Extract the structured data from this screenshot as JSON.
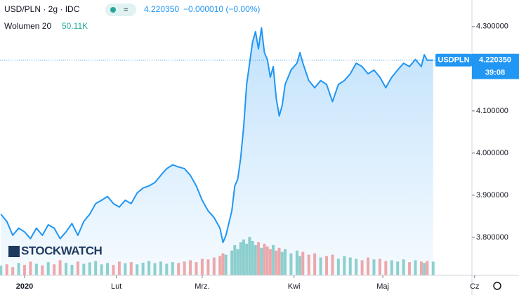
{
  "chart_data": {
    "type": "area",
    "title": "USD/PLN · 2g · IDC",
    "price": "4.220350",
    "change": "−0.000010 (−0.00%)",
    "volume_label": "Wolumen 20",
    "volume_value": "50.11K",
    "symbol_tag": "USDPLN",
    "countdown": "39:08",
    "logo": "STOCKWATCH",
    "x": [
      -8,
      -6,
      -4,
      -2,
      0,
      2,
      4,
      6,
      8,
      10,
      12,
      14,
      16,
      18,
      20,
      22,
      24,
      26,
      28,
      30,
      32,
      34,
      36,
      38,
      40,
      42,
      44,
      46,
      48,
      50,
      52,
      54,
      56,
      58,
      60,
      62,
      64,
      66,
      67,
      68,
      70,
      71,
      72,
      73,
      74,
      75,
      76,
      77,
      78,
      79,
      80,
      81,
      82,
      83,
      84,
      85,
      86,
      87,
      88,
      90,
      92,
      93,
      94,
      96,
      98,
      100,
      102,
      104,
      106,
      108,
      110,
      112,
      114,
      116,
      118,
      120,
      122,
      124,
      126,
      128,
      130,
      132,
      134,
      135,
      136,
      138
    ],
    "series": [
      {
        "name": "USD/PLN",
        "color": "#2196f3",
        "values": [
          3.855,
          3.838,
          3.805,
          3.822,
          3.813,
          3.797,
          3.822,
          3.805,
          3.83,
          3.822,
          3.797,
          3.813,
          3.833,
          3.805,
          3.838,
          3.855,
          3.88,
          3.888,
          3.897,
          3.88,
          3.872,
          3.888,
          3.88,
          3.905,
          3.917,
          3.922,
          3.93,
          3.947,
          3.963,
          3.972,
          3.967,
          3.963,
          3.947,
          3.922,
          3.888,
          3.863,
          3.847,
          3.822,
          3.788,
          3.805,
          3.863,
          3.922,
          3.938,
          3.988,
          4.063,
          4.163,
          4.213,
          4.263,
          4.288,
          4.247,
          4.297,
          4.238,
          4.222,
          4.18,
          4.205,
          4.13,
          4.088,
          4.113,
          4.163,
          4.197,
          4.213,
          4.238,
          4.213,
          4.172,
          4.155,
          4.172,
          4.163,
          4.122,
          4.163,
          4.172,
          4.188,
          4.213,
          4.205,
          4.188,
          4.197,
          4.18,
          4.155,
          4.18,
          4.197,
          4.213,
          4.205,
          4.222,
          4.205,
          4.233,
          4.22,
          4.22035
        ]
      },
      {
        "name": "Wolumen",
        "axis": "y2",
        "color": "#26a69a",
        "down_color": "#ef5350",
        "values": [
          35,
          40,
          30,
          45,
          38,
          50,
          42,
          36,
          48,
          40,
          55,
          45,
          38,
          50,
          42,
          47,
          52,
          40,
          45,
          38,
          50,
          44,
          48,
          40,
          46,
          52,
          44,
          50,
          42,
          48,
          45,
          50,
          55,
          48,
          60,
          58,
          65,
          70,
          80,
          75,
          90,
          110,
          95,
          120,
          130,
          115,
          140,
          125,
          110,
          120,
          100,
          115,
          105,
          95,
          110,
          90,
          100,
          85,
          95,
          80,
          90,
          70,
          85,
          75,
          80,
          65,
          70,
          75,
          60,
          70,
          65,
          60,
          55,
          65,
          58,
          60,
          52,
          55,
          50,
          58,
          48,
          55,
          50,
          45,
          52,
          50
        ]
      }
    ],
    "xlim": [
      -8.3,
      151.1
    ],
    "xticks": [
      {
        "value": 0,
        "label": "2020"
      },
      {
        "value": 31,
        "label": "Lut"
      },
      {
        "value": 60,
        "label": "Mrz."
      },
      {
        "value": 91,
        "label": "Kwi"
      },
      {
        "value": 121,
        "label": "Maj"
      },
      {
        "value": 152,
        "label": "Cz"
      }
    ],
    "ylim": [
      3.71,
      4.363
    ],
    "yticks": [
      {
        "value": 3.8,
        "label": "3.800000"
      },
      {
        "value": 3.9,
        "label": "3.900000"
      },
      {
        "value": 4.0,
        "label": "4.000000"
      },
      {
        "value": 4.1,
        "label": "4.100000"
      },
      {
        "value": 4.3,
        "label": "4.300000"
      }
    ],
    "y2lim": [
      0,
      1000
    ]
  }
}
